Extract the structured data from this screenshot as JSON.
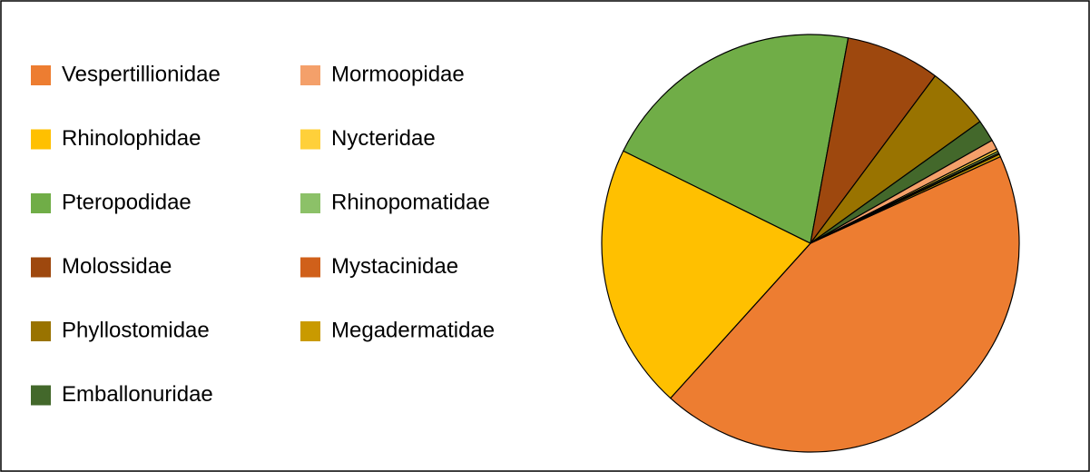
{
  "chart_data": {
    "type": "pie",
    "categories": [
      "Vespertillionidae",
      "Rhinolophidae",
      "Pteropodidae",
      "Molossidae",
      "Phyllostomidae",
      "Emballonuridae",
      "Mormoopidae",
      "Nycteridae",
      "Rhinopomatidae",
      "Mystacinidae",
      "Megadermatidae"
    ],
    "values": [
      43.5,
      20.6,
      20.6,
      7.3,
      4.9,
      1.7,
      0.75,
      0.2,
      0.15,
      0.1,
      0.2
    ],
    "colors": [
      "#ED7D31",
      "#FFC000",
      "#70AD47",
      "#9E480E",
      "#997300",
      "#43682B",
      "#F4A06A",
      "#FFD03A",
      "#8CC168",
      "#D0601A",
      "#C99A00"
    ]
  }
}
